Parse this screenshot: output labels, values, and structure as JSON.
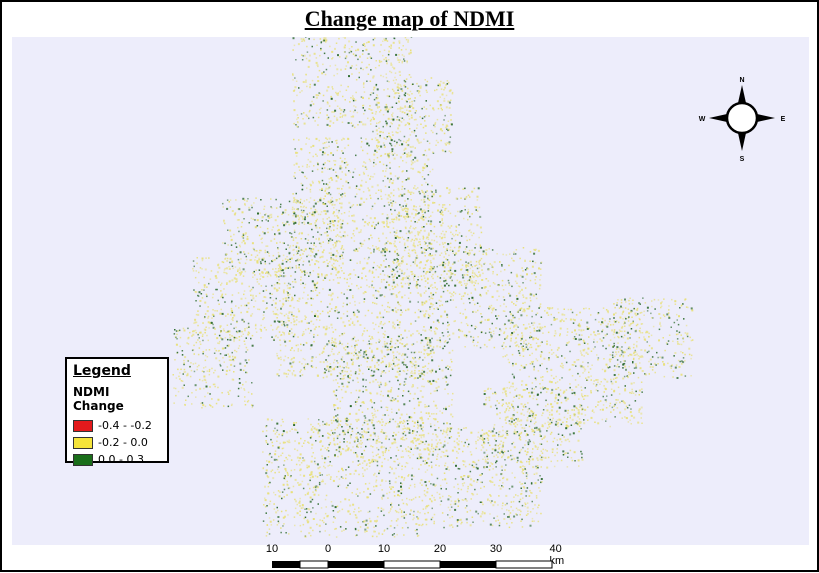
{
  "title": "Change map of NDMI",
  "compass": {
    "n": "N",
    "s": "S",
    "e": "E",
    "w": "W"
  },
  "legend": {
    "title": "Legend",
    "subtitle": "NDMI Change",
    "items": [
      {
        "label": "-0.4 - -0.2",
        "color": "#e31a1c"
      },
      {
        "label": "-0.2 - 0.0",
        "color": "#f5e43a"
      },
      {
        "label": "0.0 - 0.3",
        "color": "#1a6e1a"
      }
    ]
  },
  "scalebar": {
    "labels": [
      "10",
      "0",
      "10",
      "20",
      "30",
      "40 km"
    ]
  },
  "colors": {
    "background": "#ededfb",
    "yellow": "#e8e07a",
    "green": "#2e6b2e"
  }
}
